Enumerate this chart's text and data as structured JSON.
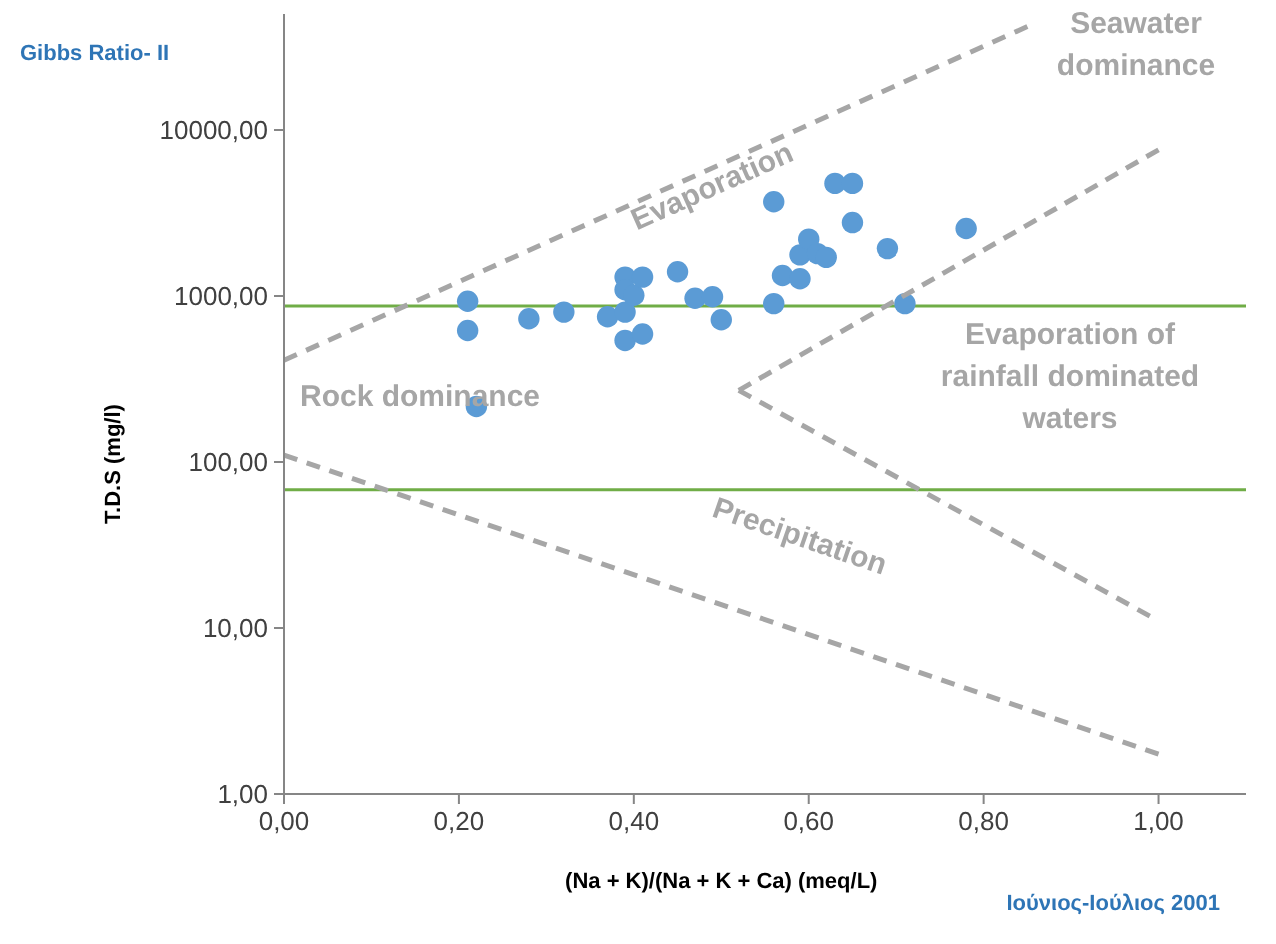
{
  "chart_data": {
    "type": "scatter",
    "title": "Gibbs Ratio- II",
    "xlabel": "(Na + K)/(Na + K + Ca) (meq/L)",
    "ylabel": "T.D.S (mg/l)",
    "log": "y",
    "xlim": [
      0,
      1.1
    ],
    "ylim": [
      1,
      50000
    ],
    "xticks": [
      {
        "value": 0,
        "label": "0,00"
      },
      {
        "value": 0.2,
        "label": "0,20"
      },
      {
        "value": 0.4,
        "label": "0,40"
      },
      {
        "value": 0.6,
        "label": "0,60"
      },
      {
        "value": 0.8,
        "label": "0,80"
      },
      {
        "value": 1,
        "label": "1,00"
      }
    ],
    "yticks": [
      {
        "value": 1,
        "label": "1,00"
      },
      {
        "value": 10,
        "label": "10,00"
      },
      {
        "value": 100,
        "label": "100,00"
      },
      {
        "value": 1000,
        "label": "1000,00"
      },
      {
        "value": 10000,
        "label": "10000,00"
      }
    ],
    "grid": false,
    "marker": "circle",
    "series": [
      {
        "color": "#5b9bd5",
        "x": [
          0.21,
          0.21,
          0.28,
          0.32,
          0.37,
          0.39,
          0.39,
          0.39,
          0.4,
          0.41,
          0.39,
          0.41,
          0.45,
          0.47,
          0.49,
          0.5,
          0.56,
          0.56,
          0.57,
          0.59,
          0.59,
          0.6,
          0.61,
          0.62,
          0.63,
          0.65,
          0.65,
          0.69,
          0.71,
          0.78,
          0.22
        ],
        "values": [
          930,
          620,
          730,
          800,
          750,
          800,
          1300,
          1090,
          1010,
          1300,
          540,
          590,
          1400,
          970,
          990,
          720,
          900,
          3700,
          1330,
          1270,
          1770,
          2200,
          1800,
          1710,
          4770,
          4770,
          2770,
          1930,
          900,
          2550,
          216
        ]
      },
      {
        "type": "line",
        "color": "#a6a6a6",
        "line_style": "dashed",
        "marker": "none",
        "x": [
          0,
          0.85
        ],
        "values": [
          410,
          42000
        ]
      },
      {
        "type": "line",
        "color": "#a6a6a6",
        "line_style": "dashed",
        "marker": "none",
        "x": [
          0.52,
          1.0
        ],
        "values": [
          270,
          7600
        ]
      },
      {
        "type": "line",
        "color": "#a6a6a6",
        "line_style": "dashed",
        "marker": "none",
        "x": [
          0.52,
          0.99
        ],
        "values": [
          270,
          11.8
        ]
      },
      {
        "type": "line",
        "color": "#a6a6a6",
        "line_style": "dashed",
        "marker": "none",
        "x": [
          0,
          1.0
        ],
        "values": [
          110,
          1.74
        ]
      }
    ],
    "ref_lines": [
      {
        "axis": "y",
        "value": 870,
        "color": "#70ad47"
      },
      {
        "axis": "y",
        "value": 68,
        "color": "#70ad47"
      }
    ],
    "annotations": [
      "Seawater dominance",
      "Evaporation",
      "Evaporation of rainfall dominated waters",
      "Rock dominance",
      "Precipitation",
      "Ιούνιος-Ιούλιος 2001"
    ]
  }
}
